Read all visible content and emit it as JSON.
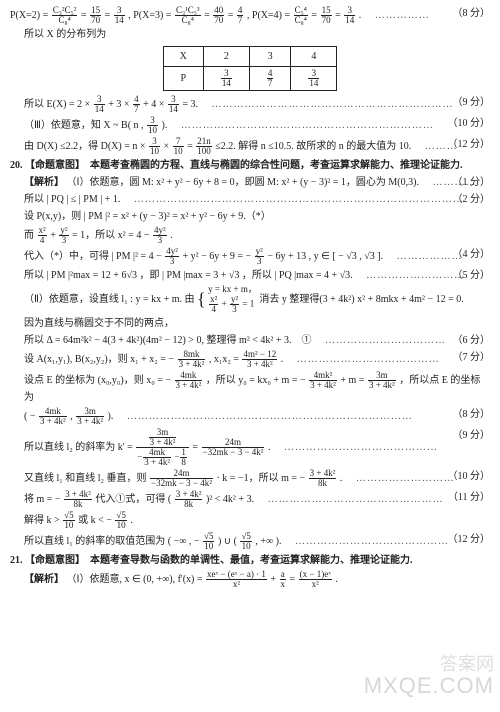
{
  "top": {
    "l1_a": "P(X=2) =",
    "l1_b": "=",
    "l1_c": "=",
    "l1_d": ", P(X=3) =",
    "l1_e": "=",
    "l1_f": "=",
    "l1_g": ", P(X=4) =",
    "l1_h": "=",
    "l1_i": "=",
    "l1_j": ".",
    "score1": "（8 分）",
    "l2": "所以 X 的分布列为",
    "fracs": {
      "a_n": "C₃²C₅²",
      "a_d": "C₈⁴",
      "b_n": "15",
      "b_d": "70",
      "c_n": "3",
      "c_d": "14",
      "d_n": "C₃¹C₅³",
      "d_d": "C₈⁴",
      "e_n": "40",
      "e_d": "70",
      "f_n": "4",
      "f_d": "7",
      "g_n": "C₅⁴",
      "g_d": "C₈⁴",
      "h_n": "15",
      "h_d": "70",
      "i_n": "3",
      "i_d": "14"
    }
  },
  "table": {
    "h1": "X",
    "h2": "2",
    "h3": "3",
    "h4": "4",
    "r1": "P",
    "p2_n": "3",
    "p2_d": "14",
    "p3_n": "4",
    "p3_d": "7",
    "p4_n": "3",
    "p4_d": "14"
  },
  "ex": {
    "l3a": "所以 E(X) = 2 ×",
    "l3b": "+ 3 ×",
    "l3c": "+ 4 ×",
    "l3d": "= 3.",
    "f1n": "3",
    "f1d": "14",
    "f2n": "4",
    "f2d": "7",
    "f3n": "3",
    "f3d": "14",
    "score3": "（9 分）",
    "l4": "（Ⅲ）依题意，知 X ~ B( n ,",
    "l4b": ").",
    "f4n": "3",
    "f4d": "10",
    "score4": "（10 分）",
    "l5a": "由 D(X) ≤2.2，得 D(X) = n ×",
    "l5b": "×",
    "l5c": "=",
    "l5d": "≤2.2. 解得 n ≤10.5. 故所求的 n 的最大值为 10.",
    "f5n": "3",
    "f5d": "10",
    "f6n": "7",
    "f6d": "10",
    "f7n": "21n",
    "f7d": "100",
    "score5": "（12 分）"
  },
  "q20": {
    "num": "20.",
    "intent": "【命题意图】　本题考查椭圆的方程、直线与椭圆的综合性问题，考查运算求解能力、推理论证能力.",
    "sol": "【解析】",
    "p1a": "（Ⅰ）依题意，圆 M: x² + y² − 6y + 8 = 0，即圆 M: x² + (y − 3)² = 1，圆心为 M(0,3).",
    "score_p1": "（1 分）",
    "p2": "所以 | PQ | ≤ | PM | + 1.",
    "score_p2": "（2 分）",
    "p3": "设 P(x,y)，则 | PM |² = x² + (y − 3)² = x² + y² − 6y + 9.（*）",
    "p4a": "而",
    "p4b": "+",
    "p4c": "= 1，所以 x² = 4 −",
    "p4d": ".",
    "f_e1n": "x²",
    "f_e1d": "4",
    "f_e2n": "y²",
    "f_e2d": "3",
    "f_e3n": "4y²",
    "f_e3d": "3",
    "p5a": "代入（*）中，可得 | PM |² = 4 −",
    "p5b": "+ y² − 6y + 9 = −",
    "p5c": "− 6y + 13 , y ∈ [ − √3 , √3 ].",
    "f_e4n": "4y²",
    "f_e4d": "3",
    "f_e5n": "y²",
    "f_e5d": "3",
    "score_p5": "（4 分）",
    "p6": "所以 | PM |²max = 12 + 6√3 ，即 | PM |max = 3 + √3 ，所以 | PQ |max = 4 + √3.",
    "score_p6": "（5 分）",
    "p7a": "（Ⅱ）依题意，设直线 l₁ : y = kx + m. 由",
    "p7b": "消去 y 整理得(3 + 4k²) x² + 8mkx + 4m² − 12 = 0.",
    "sys1": "y = kx + m，",
    "sys2_a": "x²",
    "sys2_b": "4",
    "sys2_c": "y²",
    "sys2_d": "3",
    "sys2_e": "= 1",
    "p8": "因为直线与椭圆交于不同的两点，",
    "p9": "所以 Δ = 64m²k² − 4(3 + 4k²)(4m² − 12) > 0, 整理得 m² < 4k² + 3.　①",
    "score_p9": "（6 分）",
    "p10a": "设 A(x₁,y₁), B(x₂,y₂)，则 x₁ + x₂ = −",
    "p10b": ", x₁x₂ =",
    "p10c": ".",
    "f_a1n": "8mk",
    "f_a1d": "3 + 4k²",
    "f_a2n": "4m² − 12",
    "f_a2d": "3 + 4k²",
    "score_p10": "（7 分）",
    "p11a": "设点 E 的坐标为 (x₀,y₀)，则 x₀ = −",
    "p11b": "，所以 y₀ = kx₀ + m = −",
    "p11c": "+ m =",
    "p11d": "，所以点 E 的坐标为",
    "f_b1n": "4mk",
    "f_b1d": "3 + 4k²",
    "f_b2n": "4mk²",
    "f_b2d": "3 + 4k²",
    "f_b3n": "3m",
    "f_b3d": "3 + 4k²",
    "p12a": "( −",
    "p12b": ",",
    "p12c": ").",
    "f_c1n": "4mk",
    "f_c1d": "3 + 4k²",
    "f_c2n": "3m",
    "f_c2d": "3 + 4k²",
    "score_p12": "（8 分）",
    "p13a": "所以直线 l₂ 的斜率为 k' =",
    "p13b": "=",
    "p13c": ".",
    "bigfrac_top_n": "3m",
    "bigfrac_top_d": "3 + 4k²",
    "bigfrac_bot_a": "−",
    "bigfrac_bot_n": "4mk",
    "bigfrac_bot_d": "3 + 4k²",
    "bigfrac_bot_b": "−",
    "bigfrac_bot_cn": "1",
    "bigfrac_bot_cd": "8",
    "f_d2n": "24m",
    "f_d2d": "−32mk − 3 − 4k²",
    "score_p13": "（9 分）",
    "p14a": "又直线 l₁ 和直线 l₂ 垂直，则",
    "p14b": "· k = −1，所以 m = −",
    "p14c": ".",
    "f_e6n": "24m",
    "f_e6d": "−32mk − 3 − 4k²",
    "f_e7n": "3 + 4k²",
    "f_e7d": "8k",
    "score_p14": "（10 分）",
    "p15a": "将 m = −",
    "p15b": "代入①式，可得 (",
    "p15c": ")² < 4k² + 3.",
    "f_f1n": "3 + 4k²",
    "f_f1d": "8k",
    "f_f2n": "3 + 4k²",
    "f_f2d": "8k",
    "score_p15": "（11 分）",
    "p16a": "解得 k >",
    "p16b": "或 k < −",
    "p16c": ".",
    "f_g1n": "√5",
    "f_g1d": "10",
    "f_g2n": "√5",
    "f_g2d": "10",
    "p17a": "所以直线 l₁ 的斜率的取值范围为 ( −∞ , −",
    "p17b": ") ∪ (",
    "p17c": ", +∞ ).",
    "f_h1n": "√5",
    "f_h1d": "10",
    "f_h2n": "√5",
    "f_h2d": "10",
    "score_p17": "（12 分）"
  },
  "q21": {
    "num": "21.",
    "intent": "【命题意图】　本题考查导数与函数的单调性、最值，考查运算求解能力、推理论证能力.",
    "sol": "【解析】",
    "p1a": "（Ⅰ）依题意, x ∈ (0, +∞), f'(x) =",
    "p1b": "=",
    "p1c": ".",
    "f_i1n": "xeˣ − (eˣ − a) · 1",
    "f_i1d": "x²",
    "f_i2n": "a",
    "f_i2d": "x",
    "f_i3n": "(x − 1)eˣ",
    "f_i3d": "x²"
  },
  "wm1": "答案网",
  "wm2": "MXQE.COM"
}
